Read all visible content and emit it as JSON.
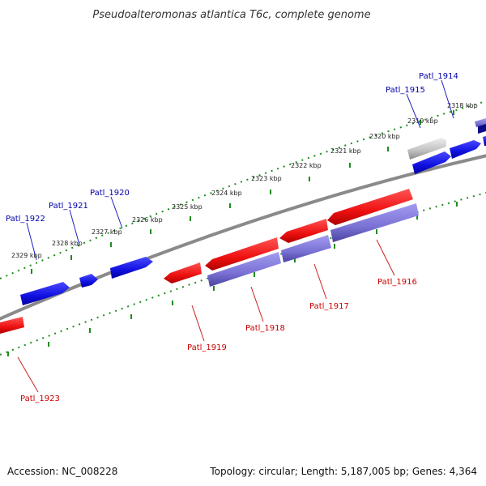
{
  "title": "Pseudoalteromonas atlantica T6c, complete genome",
  "footer": {
    "accession": "Accession: NC_008228",
    "summary": "Topology: circular; Length: 5,187,005 bp; Genes: 4,364"
  },
  "colors": {
    "forward_gene": "#1515e6",
    "reverse_gene": "#f01818",
    "rna_gene": "#7f77d6",
    "pseudo_gene": "#c2c2c2",
    "backbone": "#888888",
    "ticks": "#1e8c1e",
    "forward_label": "#0000aa",
    "reverse_label": "#cc0000"
  },
  "kbp_ticks": [
    "2318 kbp",
    "2319 kbp",
    "2320 kbp",
    "2321 kbp",
    "2322 kbp",
    "2323 kbp",
    "2324 kbp",
    "2325 kbp",
    "2326 kbp",
    "2327 kbp",
    "2328 kbp",
    "2329 kbp"
  ],
  "forward_genes": [
    "Patl_1914",
    "Patl_1915",
    "Patl_1920",
    "Patl_1921",
    "Patl_1922"
  ],
  "reverse_genes": [
    "Patl_1916",
    "Patl_1917",
    "Patl_1918",
    "Patl_1919",
    "Patl_1923"
  ]
}
